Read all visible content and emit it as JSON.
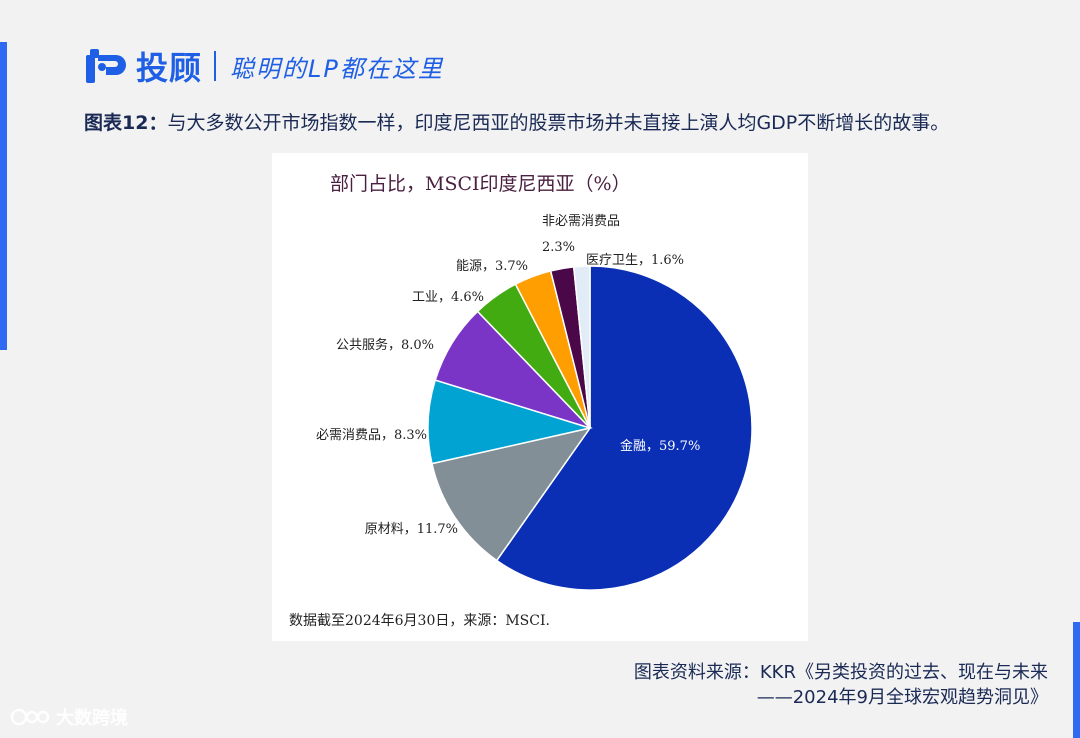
{
  "header": {
    "brand": "投顾",
    "slogan": "聪明的LP都在这里",
    "logo_icon": "tg-logo-icon"
  },
  "figure": {
    "lead": "图表12：",
    "title": "与大多数公开市场指数一样，印度尼西亚的股票市场并未直接上演人均GDP不断增长的故事。"
  },
  "chart_data": {
    "type": "pie",
    "title": "部门占比，MSCI印度尼西亚（%）",
    "note": "数据截至2024年6月30日，来源：MSCI.",
    "unit": "%",
    "slices": [
      {
        "name": "金融",
        "value": 59.7,
        "label": "金融，59.7%",
        "color": "#0a2fb5"
      },
      {
        "name": "原材料",
        "value": 11.7,
        "label": "原材料，11.7%",
        "color": "#828f96"
      },
      {
        "name": "必需消费品",
        "value": 8.3,
        "label": "必需消费品，8.3%",
        "color": "#00a3d2"
      },
      {
        "name": "公共服务",
        "value": 8.0,
        "label": "公共服务，8.0%",
        "color": "#7a35c6"
      },
      {
        "name": "工业",
        "value": 4.6,
        "label": "工业，4.6%",
        "color": "#43ab12"
      },
      {
        "name": "能源",
        "value": 3.7,
        "label": "能源，3.7%",
        "color": "#ff9e00"
      },
      {
        "name": "非必需消费品",
        "value": 2.3,
        "label_lines": [
          "非必需消费品",
          "2.3%"
        ],
        "color": "#4a0848"
      },
      {
        "name": "医疗卫生",
        "value": 1.6,
        "label": "医疗卫生，1.6%",
        "color": "#e2ecf6"
      }
    ]
  },
  "source": {
    "line1": "图表资料来源：KKR《另类投资的过去、现在与未来",
    "line2": "——2024年9月全球宏观趋势洞见》"
  },
  "watermark": {
    "text": "大数跨境",
    "icon": "dashujk-watermark-icon"
  },
  "colors": {
    "accent": "#2e6bf2",
    "brand": "#1f5fe6",
    "title_text": "#1a2a55"
  }
}
